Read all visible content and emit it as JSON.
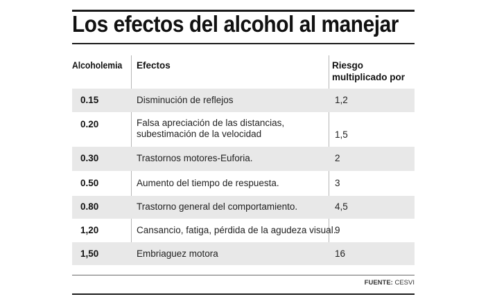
{
  "title": "Los efectos del alcohol al manejar",
  "headers": {
    "alcoholemia": "Alcoholemia",
    "efectos": "Efectos",
    "riesgo_line1": "Riesgo",
    "riesgo_line2": "multiplicado por"
  },
  "rows": [
    {
      "alcoholemia": "0.15",
      "efectos": [
        "Disminución de reflejos"
      ],
      "riesgo": "1,2"
    },
    {
      "alcoholemia": "0.20",
      "efectos": [
        "Falsa apreciación de las distancias,",
        "subestimación de la velocidad"
      ],
      "riesgo": "1,5"
    },
    {
      "alcoholemia": "0.30",
      "efectos": [
        "Trastornos motores-Euforia."
      ],
      "riesgo": "2"
    },
    {
      "alcoholemia": "0.50",
      "efectos": [
        "Aumento del tiempo de respuesta."
      ],
      "riesgo": "3"
    },
    {
      "alcoholemia": "0.80",
      "efectos": [
        "Trastorno general del comportamiento."
      ],
      "riesgo": "4,5"
    },
    {
      "alcoholemia": "1,20",
      "efectos": [
        "Cansancio, fatiga, pérdida de la agudeza visual."
      ],
      "riesgo": "9"
    },
    {
      "alcoholemia": "1,50",
      "efectos": [
        "Embriaguez motora"
      ],
      "riesgo": "16"
    }
  ],
  "source": {
    "label": "FUENTE:",
    "value": "CESVI"
  },
  "colors": {
    "shade": "#e8e8e8",
    "rule": "#1a1a1a",
    "divider": "#b5b5b5"
  }
}
